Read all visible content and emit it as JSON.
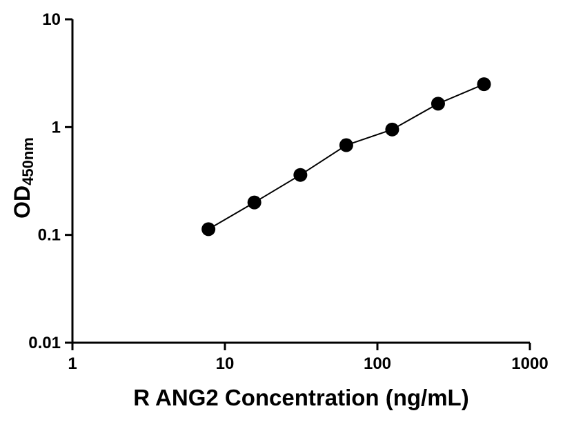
{
  "figure": {
    "background": "#ffffff"
  },
  "chart_data": {
    "type": "scatter",
    "x": [
      7.8,
      15.6,
      31.25,
      62.5,
      125,
      250,
      500
    ],
    "y": [
      0.113,
      0.2,
      0.36,
      0.68,
      0.95,
      1.65,
      2.5
    ],
    "xlabel": "R ANG2 Concentration (ng/mL)",
    "ylabel": "OD450nm",
    "ylabel_main": "OD",
    "ylabel_sub": "450nm",
    "xscale": "log",
    "yscale": "log",
    "xlim": [
      1,
      1000
    ],
    "ylim": [
      0.01,
      10
    ],
    "x_ticks": [
      "1",
      "10",
      "100",
      "1000"
    ],
    "x_tick_values": [
      1,
      10,
      100,
      1000
    ],
    "y_ticks": [
      "0.01",
      "0.1",
      "1",
      "10"
    ],
    "y_tick_values": [
      0.01,
      0.1,
      1,
      10
    ],
    "grid": false,
    "legend": "none",
    "marker_color": "#000000",
    "line_color": "#000000",
    "axis_color": "#000000"
  }
}
